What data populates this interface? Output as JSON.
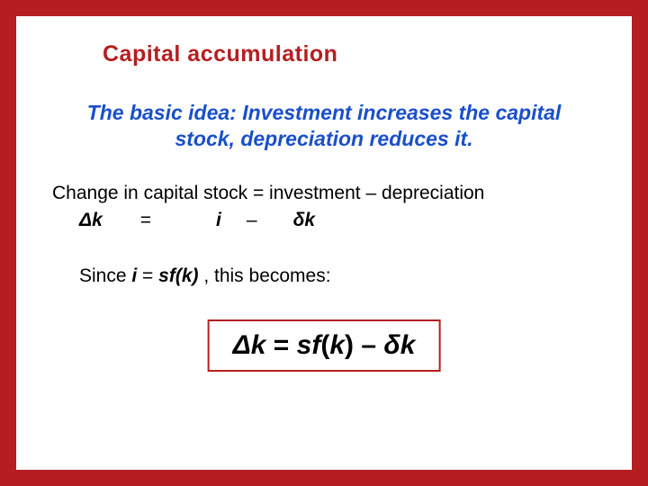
{
  "colors": {
    "frame": "#b41e22",
    "inner_bg": "#ffffff",
    "title": "#b41e22",
    "idea": "#1a4fc9",
    "body": "#000000",
    "box_border": "#b41e22"
  },
  "title": "Capital accumulation",
  "idea_line1": "The basic idea:  Investment increases the capital",
  "idea_line2": "stock, depreciation reduces it.",
  "change_line": "Change in capital stock   =  investment – depreciation",
  "eq_small": {
    "dk": "Δk",
    "eq": "=",
    "i": "i",
    "minus": "–",
    "delta_k": "δk"
  },
  "since_prefix": "Since  ",
  "since_i": "i",
  "since_eq": "  =  ",
  "since_sfk": "sf(k)",
  "since_suffix": " , this becomes:",
  "boxed": {
    "dk": "Δk",
    "eq": "  =  ",
    "sf": "sf",
    "paren_open": "(",
    "k": "k",
    "paren_close": ")",
    "minus": "  – ",
    "delta_k": "δk"
  }
}
